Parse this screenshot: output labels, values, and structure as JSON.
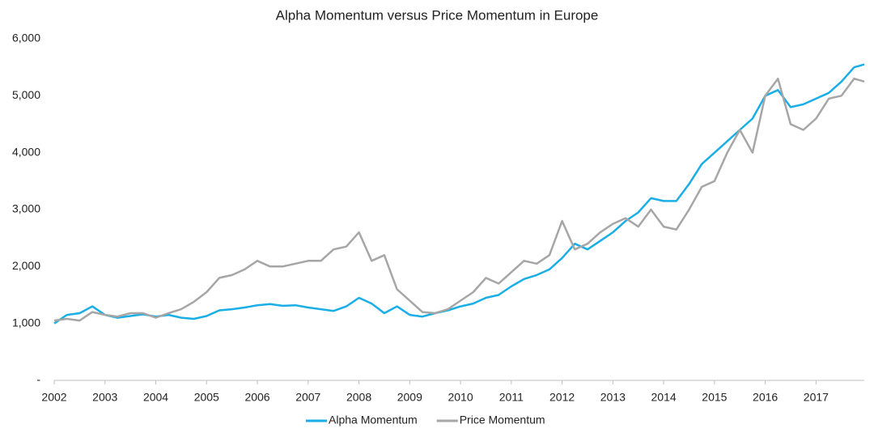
{
  "chart_data": {
    "type": "line",
    "title": "Alpha Momentum versus Price Momentum in Europe",
    "x": [
      2002,
      2002.25,
      2002.5,
      2002.75,
      2003,
      2003.25,
      2003.5,
      2003.75,
      2004,
      2004.25,
      2004.5,
      2004.75,
      2005,
      2005.25,
      2005.5,
      2005.75,
      2006,
      2006.25,
      2006.5,
      2006.75,
      2007,
      2007.25,
      2007.5,
      2007.75,
      2008,
      2008.25,
      2008.5,
      2008.75,
      2009,
      2009.25,
      2009.5,
      2009.75,
      2010,
      2010.25,
      2010.5,
      2010.75,
      2011,
      2011.25,
      2011.5,
      2011.75,
      2012,
      2012.25,
      2012.5,
      2012.75,
      2013,
      2013.25,
      2013.5,
      2013.75,
      2014,
      2014.25,
      2014.5,
      2014.75,
      2015,
      2015.25,
      2015.5,
      2015.75,
      2016,
      2016.25,
      2016.5,
      2016.75,
      2017,
      2017.25,
      2017.5,
      2017.75,
      2017.95
    ],
    "series": [
      {
        "name": "Alpha Momentum",
        "color": "#1aaee6",
        "values": [
          1000,
          1150,
          1180,
          1300,
          1150,
          1100,
          1130,
          1160,
          1120,
          1150,
          1100,
          1080,
          1130,
          1230,
          1250,
          1280,
          1320,
          1340,
          1310,
          1320,
          1280,
          1250,
          1220,
          1300,
          1450,
          1350,
          1180,
          1300,
          1150,
          1120,
          1180,
          1230,
          1300,
          1350,
          1450,
          1500,
          1650,
          1780,
          1850,
          1950,
          2150,
          2400,
          2300,
          2450,
          2600,
          2800,
          2950,
          3200,
          3150,
          3150,
          3450,
          3800,
          4000,
          4200,
          4400,
          4600,
          5000,
          5100,
          4800,
          4850,
          4950,
          5050,
          5250,
          5500,
          5550
        ]
      },
      {
        "name": "Price Momentum",
        "color": "#a6a6a6",
        "values": [
          1050,
          1080,
          1050,
          1200,
          1150,
          1120,
          1180,
          1180,
          1100,
          1180,
          1250,
          1380,
          1550,
          1800,
          1850,
          1950,
          2100,
          2000,
          2000,
          2050,
          2100,
          2100,
          2300,
          2350,
          2600,
          2100,
          2200,
          1600,
          1400,
          1200,
          1180,
          1250,
          1400,
          1550,
          1800,
          1700,
          1900,
          2100,
          2050,
          2200,
          2800,
          2300,
          2400,
          2600,
          2750,
          2850,
          2700,
          3000,
          2700,
          2650,
          3000,
          3400,
          3500,
          4000,
          4400,
          4000,
          5000,
          5300,
          4500,
          4400,
          4600,
          4950,
          5000,
          5300,
          5250
        ]
      }
    ],
    "xlim": [
      2002,
      2017.95
    ],
    "xticks": [
      2002,
      2003,
      2004,
      2005,
      2006,
      2007,
      2008,
      2009,
      2010,
      2011,
      2012,
      2013,
      2014,
      2015,
      2016,
      2017
    ],
    "ylim": [
      0,
      6000
    ],
    "yticks": [
      {
        "value": 0,
        "label": "-"
      },
      {
        "value": 1000,
        "label": "1,000"
      },
      {
        "value": 2000,
        "label": "2,000"
      },
      {
        "value": 3000,
        "label": "3,000"
      },
      {
        "value": 4000,
        "label": "4,000"
      },
      {
        "value": 5000,
        "label": "5,000"
      },
      {
        "value": 6000,
        "label": "6,000"
      }
    ],
    "legend": "bottom"
  }
}
